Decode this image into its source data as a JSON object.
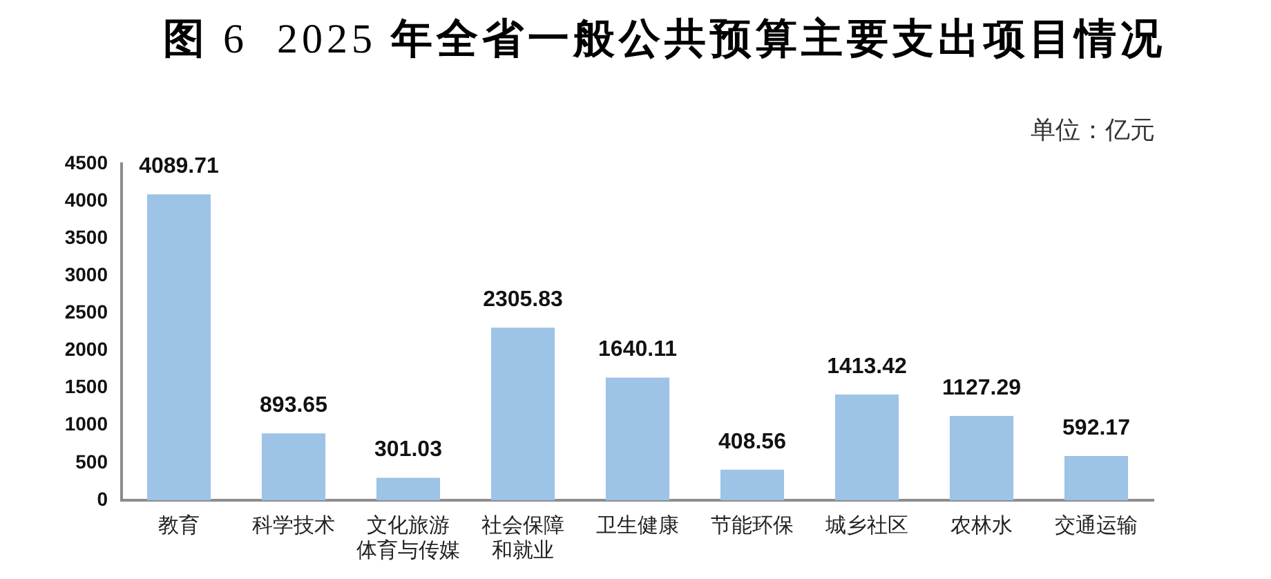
{
  "chart_data": {
    "type": "bar",
    "title": "图 6  2025 年全省一般公共预算主要支出项目情况",
    "annotations": [
      "单位：亿元"
    ],
    "categories": [
      "教育",
      "科学技术",
      "文化旅游体育与传媒",
      "社会保障和就业",
      "卫生健康",
      "节能环保",
      "城乡社区",
      "农林水",
      "交通运输"
    ],
    "values": [
      4089.71,
      893.65,
      301.03,
      2305.83,
      1640.11,
      408.56,
      1413.42,
      1127.29,
      592.17
    ],
    "color": "#9dc3e6",
    "ylim": [
      0,
      4500
    ],
    "yticks": [
      0,
      500,
      1000,
      1500,
      2000,
      2500,
      3000,
      3500,
      4000,
      4500
    ],
    "data_labels": true
  }
}
